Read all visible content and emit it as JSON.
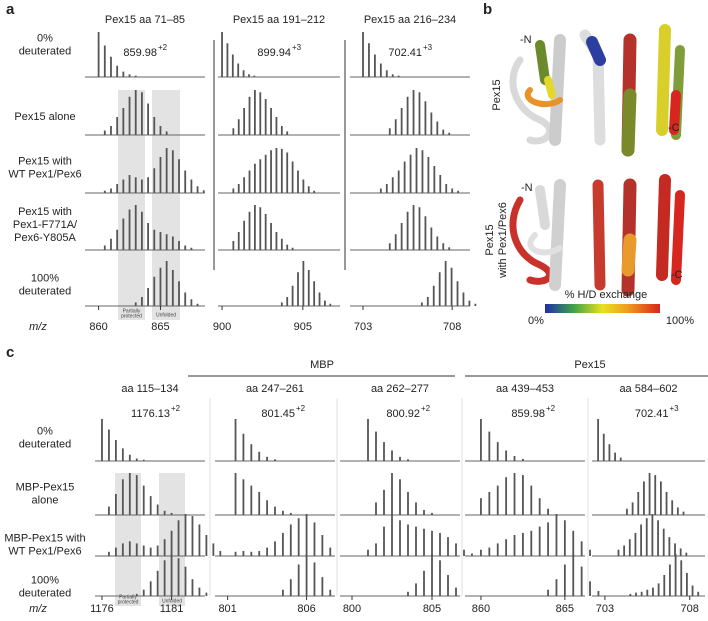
{
  "panel_letters": [
    "a",
    "b",
    "c"
  ],
  "panel_a": {
    "mz_axis_label": "m/z",
    "rows": [
      [
        "0%",
        "deuterated"
      ],
      [
        "Pex15 alone"
      ],
      [
        "Pex15 with",
        "WT Pex1/Pex6"
      ],
      [
        "Pex15 with",
        "Pex1-F771A/",
        "Pex6-Y805A"
      ],
      [
        "100%",
        "deuterated"
      ]
    ],
    "shading": [
      "Partially",
      "protected",
      "Unfolded"
    ],
    "columns": [
      {
        "title": "Pex15 aa 71–85",
        "mz": "859.98",
        "charge": "+2",
        "xlim": [
          858.9,
          868.6
        ],
        "xticks": [
          860,
          865
        ],
        "spectra": [
          {
            "start": 860,
            "heights": [
              100,
              70,
              45,
              25,
              12,
              6,
              3
            ]
          },
          {
            "start": 860.5,
            "heights": [
              10,
              20,
              40,
              60,
              85,
              100,
              95,
              70,
              40,
              20,
              8
            ]
          },
          {
            "start": 860.5,
            "heights": [
              5,
              10,
              20,
              30,
              40,
              35,
              30,
              35,
              55,
              80,
              100,
              95,
              75,
              50,
              30,
              15,
              6
            ]
          },
          {
            "start": 860.5,
            "heights": [
              10,
              25,
              45,
              70,
              90,
              100,
              85,
              60,
              45,
              40,
              35,
              30,
              20,
              10,
              5
            ]
          },
          {
            "start": 863,
            "heights": [
              8,
              20,
              40,
              65,
              85,
              100,
              80,
              55,
              30,
              15,
              5
            ]
          }
        ]
      },
      {
        "title": "Pex15 aa 191–212",
        "mz": "899.94",
        "charge": "+3",
        "xlim": [
          899.75,
          907.3
        ],
        "xticks": [
          900,
          905
        ],
        "spectra": [
          {
            "start": 900,
            "heights": [
              100,
              75,
              50,
              30,
              15,
              6,
              3
            ]
          },
          {
            "start": 900.7,
            "heights": [
              15,
              35,
              60,
              85,
              100,
              95,
              80,
              60,
              40,
              20,
              8
            ]
          },
          {
            "start": 900.7,
            "heights": [
              10,
              20,
              35,
              50,
              65,
              75,
              85,
              95,
              100,
              98,
              90,
              70,
              50,
              30,
              15,
              5
            ]
          },
          {
            "start": 900.7,
            "heights": [
              20,
              40,
              65,
              85,
              100,
              95,
              80,
              60,
              40,
              25,
              12,
              5
            ]
          },
          {
            "start": 903.7,
            "heights": [
              8,
              20,
              45,
              75,
              100,
              80,
              55,
              30,
              12,
              5
            ]
          }
        ]
      },
      {
        "title": "Pex15 aa 216–234",
        "mz": "702.41",
        "charge": "+3",
        "xlim": [
          702.27,
          709
        ],
        "xticks": [
          703,
          708
        ],
        "spectra": [
          {
            "start": 703,
            "heights": [
              100,
              75,
              50,
              30,
              15,
              6,
              3
            ]
          },
          {
            "start": 704.5,
            "heights": [
              15,
              35,
              60,
              85,
              100,
              95,
              75,
              50,
              30,
              12,
              5
            ]
          },
          {
            "start": 704,
            "heights": [
              10,
              20,
              35,
              50,
              70,
              85,
              100,
              95,
              80,
              60,
              40,
              20,
              10,
              5
            ]
          },
          {
            "start": 704.5,
            "heights": [
              15,
              35,
              60,
              85,
              100,
              95,
              75,
              50,
              30,
              15,
              6
            ]
          },
          {
            "start": 706.3,
            "heights": [
              8,
              20,
              45,
              75,
              100,
              85,
              55,
              30,
              12,
              5
            ]
          }
        ]
      }
    ]
  },
  "panel_b": {
    "labels": [
      "Pex15",
      "Pex15",
      "with Pex1/Pex6"
    ],
    "termini": [
      "-N",
      "-C",
      "-N",
      "-C"
    ],
    "colorbar": {
      "title": "% H/D exchange",
      "min": "0%",
      "max": "100%"
    }
  },
  "panel_c": {
    "mz_axis_label": "m/z",
    "groups": [
      "MBP",
      "Pex15"
    ],
    "rows": [
      [
        "0%",
        "deuterated"
      ],
      [
        "MBP-Pex15",
        "alone"
      ],
      [
        "MBP-Pex15 with",
        "WT Pex1/Pex6"
      ],
      [
        "100%",
        "deuterated"
      ]
    ],
    "shading": [
      "Partially",
      "protected",
      "Unfolded"
    ],
    "columns": [
      {
        "title": "aa 115–134",
        "mz": "1176.13",
        "charge": "+2",
        "xlim": [
          1175.5,
          1183.4
        ],
        "xticks": [
          1176,
          1181
        ],
        "spectra": [
          {
            "start": 1176,
            "heights": [
              100,
              75,
              50,
              30,
              15,
              6,
              3,
              1
            ]
          },
          {
            "start": 1176.5,
            "heights": [
              20,
              50,
              85,
              100,
              95,
              70,
              45,
              25,
              10,
              5
            ]
          },
          {
            "start": 1176.5,
            "heights": [
              10,
              20,
              30,
              35,
              30,
              25,
              20,
              25,
              40,
              60,
              85,
              100,
              95,
              75,
              50,
              30,
              12
            ]
          },
          {
            "start": 1178.5,
            "heights": [
              5,
              15,
              35,
              60,
              85,
              100,
              90,
              70,
              40,
              20,
              8
            ]
          }
        ]
      },
      {
        "title": "aa 247–261",
        "mz": "801.45",
        "charge": "+2",
        "xlim": [
          800.2,
          807.8
        ],
        "xticks": [
          801,
          806
        ],
        "spectra": [
          {
            "start": 801.5,
            "heights": [
              100,
              65,
              40,
              22,
              10,
              4
            ]
          },
          {
            "start": 801.5,
            "heights": [
              100,
              85,
              70,
              55,
              35,
              20,
              10,
              5
            ]
          },
          {
            "start": 801.5,
            "heights": [
              10,
              12,
              10,
              12,
              20,
              35,
              55,
              75,
              90,
              100,
              80,
              50,
              20
            ]
          },
          {
            "start": 804.5,
            "heights": [
              15,
              40,
              75,
              100,
              80,
              45,
              15
            ]
          }
        ]
      },
      {
        "title": "aa 262–277",
        "mz": "800.92",
        "charge": "+2",
        "xlim": [
          799.25,
          806.75
        ],
        "xticks": [
          800,
          805
        ],
        "spectra": [
          {
            "start": 801,
            "heights": [
              100,
              70,
              45,
              25,
              10,
              4
            ]
          },
          {
            "start": 801.5,
            "heights": [
              30,
              60,
              100,
              85,
              55,
              30,
              12,
              5
            ]
          },
          {
            "start": 801,
            "heights": [
              15,
              30,
              70,
              100,
              85,
              75,
              70,
              65,
              60,
              55,
              45,
              30,
              15,
              6
            ]
          },
          {
            "start": 803.5,
            "heights": [
              10,
              30,
              60,
              100,
              85,
              50,
              20
            ]
          }
        ]
      },
      {
        "title": "aa 439–453",
        "mz": "859.98",
        "charge": "+2",
        "xlim": [
          859.05,
          866.2
        ],
        "xticks": [
          860,
          865
        ],
        "spectra": [
          {
            "start": 860,
            "heights": [
              100,
              70,
              45,
              25,
              12,
              5
            ]
          },
          {
            "start": 860,
            "heights": [
              40,
              55,
              70,
              90,
              100,
              95,
              70,
              40,
              15
            ]
          },
          {
            "start": 860,
            "heights": [
              15,
              20,
              30,
              40,
              50,
              55,
              60,
              70,
              80,
              100,
              85,
              60,
              35,
              15
            ]
          },
          {
            "start": 864,
            "heights": [
              15,
              40,
              75,
              100,
              70,
              35,
              12
            ]
          }
        ]
      },
      {
        "title": "aa 584–602",
        "mz": "702.41",
        "charge": "+3",
        "xlim": [
          702.24,
          708.9
        ],
        "xticks": [
          703,
          708
        ],
        "spectra": [
          {
            "start": 702.6,
            "heights": [
              100,
              65,
              40,
              20,
              8
            ]
          },
          {
            "start": 704.3,
            "heights": [
              15,
              30,
              55,
              80,
              100,
              95,
              80,
              55,
              35,
              18,
              8
            ]
          },
          {
            "start": 703.8,
            "heights": [
              15,
              25,
              40,
              55,
              75,
              90,
              100,
              85,
              65,
              45,
              30,
              18,
              8
            ]
          },
          {
            "start": 704.5,
            "heights": [
              5,
              8,
              10,
              15,
              20,
              30,
              50,
              75,
              100,
              85,
              55,
              25,
              10
            ]
          }
        ]
      }
    ]
  }
}
